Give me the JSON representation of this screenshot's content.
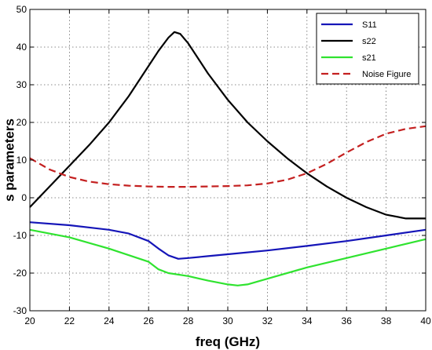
{
  "chart_data": {
    "type": "line",
    "xlabel": "freq (GHz)",
    "ylabel": "s parameters",
    "xlim": [
      20,
      40
    ],
    "ylim": [
      -30,
      50
    ],
    "xticks": [
      "20",
      "22",
      "24",
      "26",
      "28",
      "30",
      "32",
      "34",
      "36",
      "38",
      "40"
    ],
    "yticks": [
      "-30",
      "-20",
      "-10",
      "0",
      "10",
      "20",
      "30",
      "40",
      "50"
    ],
    "grid": true,
    "legend_position": "top-right",
    "series": [
      {
        "name": "S11",
        "color": "#1515b8",
        "dash": "solid",
        "x": [
          20,
          22,
          24,
          25,
          26,
          26.5,
          27,
          27.5,
          28,
          29,
          30,
          32,
          34,
          36,
          38,
          40
        ],
        "y": [
          -6.5,
          -7.3,
          -8.5,
          -9.5,
          -11.5,
          -13.5,
          -15.3,
          -16.2,
          -16,
          -15.5,
          -15,
          -14,
          -12.8,
          -11.5,
          -10,
          -8.5
        ]
      },
      {
        "name": "s22",
        "color": "#000000",
        "dash": "solid",
        "x": [
          20,
          21,
          22,
          23,
          24,
          25,
          26,
          26.5,
          27,
          27.3,
          27.6,
          28,
          28.5,
          29,
          30,
          31,
          32,
          33,
          34,
          35,
          36,
          37,
          38,
          39,
          40
        ],
        "y": [
          -2.5,
          3,
          8.5,
          14,
          20,
          27,
          35,
          39,
          42.5,
          44,
          43.5,
          41,
          37,
          33,
          26,
          20,
          15,
          10.5,
          6.5,
          3,
          0,
          -2.5,
          -4.5,
          -5.5,
          -5.5
        ]
      },
      {
        "name": "s21",
        "color": "#2fe32f",
        "dash": "solid",
        "x": [
          20,
          22,
          24,
          26,
          26.5,
          27,
          28,
          29,
          30,
          30.5,
          31,
          32,
          34,
          36,
          38,
          40
        ],
        "y": [
          -8.5,
          -10.5,
          -13.5,
          -17,
          -19,
          -20,
          -20.8,
          -22,
          -23,
          -23.3,
          -23,
          -21.5,
          -18.5,
          -16,
          -13.5,
          -11
        ]
      },
      {
        "name": "Noise Figure",
        "color": "#c42020",
        "dash": "dashed",
        "x": [
          20,
          21,
          22,
          23,
          24,
          25,
          26,
          27,
          28,
          29,
          30,
          31,
          32,
          33,
          34,
          35,
          36,
          37,
          38,
          39,
          40
        ],
        "y": [
          10.5,
          7.5,
          5.5,
          4.3,
          3.6,
          3.2,
          3,
          2.9,
          2.9,
          3,
          3.1,
          3.3,
          3.8,
          4.8,
          6.5,
          9,
          12,
          14.8,
          17,
          18.3,
          19
        ]
      }
    ]
  }
}
